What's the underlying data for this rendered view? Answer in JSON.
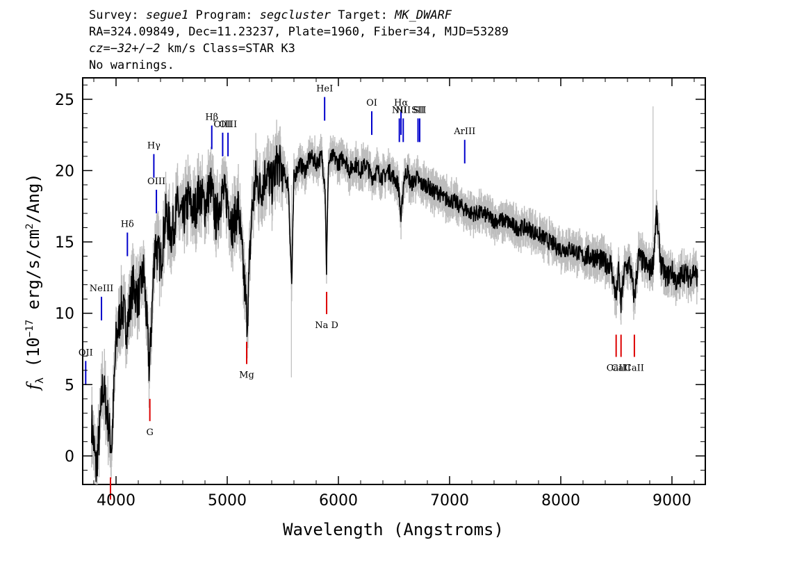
{
  "header": {
    "line1": {
      "survey_label": "Survey: ",
      "survey": "segue1",
      "program_label": " Program: ",
      "program": "segcluster",
      "target_label": " Target: ",
      "target": "MK_DWARF"
    },
    "line2": "RA=324.09849, Dec=11.23237, Plate=1960, Fiber=34, MJD=53289",
    "line3": {
      "cz_label": "cz",
      "cz_value": "=−32+/−2",
      "cz_rest": " km/s Class=STAR K3"
    },
    "line4": "No warnings."
  },
  "chart_data": {
    "type": "line",
    "xlabel": "Wavelength (Angstroms)",
    "ylabel_symbol": "f",
    "ylabel_sub": "λ",
    "ylabel_text": " (10",
    "ylabel_exp": "−17",
    "ylabel_text2": " erg/s/cm",
    "ylabel_exp2": "2",
    "ylabel_text3": "/Ang)",
    "xlim": [
      3700,
      9300
    ],
    "ylim": [
      -2,
      26.5
    ],
    "xticks": [
      "4000",
      "5000",
      "6000",
      "7000",
      "8000",
      "9000"
    ],
    "xtick_values": [
      4000,
      5000,
      6000,
      7000,
      8000,
      9000
    ],
    "yticks": [
      "0",
      "5",
      "10",
      "15",
      "20",
      "25"
    ],
    "ytick_values": [
      0,
      5,
      10,
      15,
      20,
      25
    ],
    "colors": {
      "spectrum": "#000000",
      "error": "#bdbdbd",
      "emission": "#0000cc",
      "absorption": "#dd0000"
    },
    "series": [
      {
        "name": "spectrum",
        "x": [
          3780,
          3820,
          3850,
          3880,
          3920,
          3960,
          4000,
          4050,
          4100,
          4150,
          4200,
          4250,
          4300,
          4350,
          4400,
          4450,
          4500,
          4550,
          4600,
          4650,
          4700,
          4750,
          4800,
          4850,
          4900,
          4950,
          5000,
          5050,
          5100,
          5150,
          5180,
          5220,
          5260,
          5300,
          5350,
          5400,
          5450,
          5500,
          5550,
          5580,
          5600,
          5650,
          5700,
          5750,
          5800,
          5850,
          5880,
          5893,
          5910,
          5950,
          6000,
          6050,
          6100,
          6150,
          6200,
          6250,
          6300,
          6350,
          6400,
          6450,
          6500,
          6540,
          6563,
          6590,
          6620,
          6650,
          6700,
          6750,
          6800,
          6850,
          6900,
          6950,
          7000,
          7100,
          7200,
          7300,
          7400,
          7500,
          7600,
          7700,
          7800,
          7900,
          8000,
          8100,
          8200,
          8300,
          8400,
          8450,
          8498,
          8520,
          8542,
          8570,
          8620,
          8662,
          8700,
          8750,
          8800,
          8830,
          8860,
          8900,
          8950,
          9000,
          9050,
          9100,
          9150,
          9200,
          9230
        ],
        "y": [
          2.5,
          -1.0,
          1.5,
          5.0,
          3.0,
          0.5,
          8.0,
          10.5,
          9.0,
          12.0,
          11.0,
          13.0,
          6.0,
          15.0,
          13.5,
          17.0,
          15.5,
          17.5,
          16.5,
          18.0,
          17.0,
          18.5,
          17.5,
          19.0,
          16.5,
          18.5,
          18.0,
          16.0,
          17.5,
          12.5,
          9.5,
          17.0,
          19.5,
          18.5,
          20.0,
          19.0,
          20.5,
          20.0,
          19.0,
          12.0,
          19.5,
          20.5,
          20.0,
          21.0,
          20.5,
          21.0,
          19.0,
          13.0,
          20.5,
          21.0,
          20.5,
          21.0,
          20.0,
          20.5,
          20.0,
          20.5,
          19.5,
          20.0,
          19.5,
          20.0,
          19.5,
          19.0,
          16.5,
          19.5,
          20.0,
          19.0,
          19.5,
          19.0,
          19.0,
          18.5,
          18.5,
          18.0,
          18.0,
          17.5,
          17.0,
          17.0,
          16.5,
          16.5,
          16.0,
          16.0,
          15.5,
          15.0,
          14.5,
          14.5,
          14.0,
          14.0,
          13.5,
          13.5,
          11.0,
          13.0,
          10.5,
          13.0,
          13.5,
          11.0,
          14.0,
          13.5,
          13.0,
          13.5,
          17.0,
          13.5,
          12.5,
          13.0,
          12.0,
          13.0,
          12.5,
          13.0,
          12.5
        ]
      }
    ],
    "emission_lines": [
      {
        "label": "OII",
        "x": 3727,
        "y": 5.0
      },
      {
        "label": "NeIII",
        "x": 3869,
        "y": 9.5
      },
      {
        "label": "Hδ",
        "x": 4102,
        "y": 14.0
      },
      {
        "label": "Hγ",
        "x": 4340,
        "y": 19.5
      },
      {
        "label": "OIII",
        "x": 4363,
        "y": 17.0
      },
      {
        "label": "Hβ",
        "x": 4861,
        "y": 21.5
      },
      {
        "label": "OIII",
        "x": 4959,
        "y": 21.0
      },
      {
        "label": "OIII",
        "x": 5007,
        "y": 21.0
      },
      {
        "label": "HeI",
        "x": 5876,
        "y": 23.5
      },
      {
        "label": "OI",
        "x": 6300,
        "y": 22.5
      },
      {
        "label": "NII",
        "x": 6548,
        "y": 22.0
      },
      {
        "label": "Hα",
        "x": 6563,
        "y": 22.5
      },
      {
        "label": "NII",
        "x": 6583,
        "y": 22.0
      },
      {
        "label": "SII",
        "x": 6716,
        "y": 22.0
      },
      {
        "label": "SII",
        "x": 6731,
        "y": 22.0
      },
      {
        "label": "ArIII",
        "x": 7136,
        "y": 20.5
      }
    ],
    "absorption_lines": [
      {
        "label": "G",
        "x": 4304,
        "y": 4.0
      },
      {
        "label": "Mg",
        "x": 5175,
        "y": 8.0
      },
      {
        "label": "Na D",
        "x": 5894,
        "y": 11.5
      },
      {
        "label": "CaII",
        "x": 8498,
        "y": 8.5
      },
      {
        "label": "CaII",
        "x": 8542,
        "y": 8.5
      },
      {
        "label": "CaII",
        "x": 8662,
        "y": 8.5
      },
      {
        "label": "",
        "x": 3950,
        "y": -1.5
      }
    ]
  }
}
